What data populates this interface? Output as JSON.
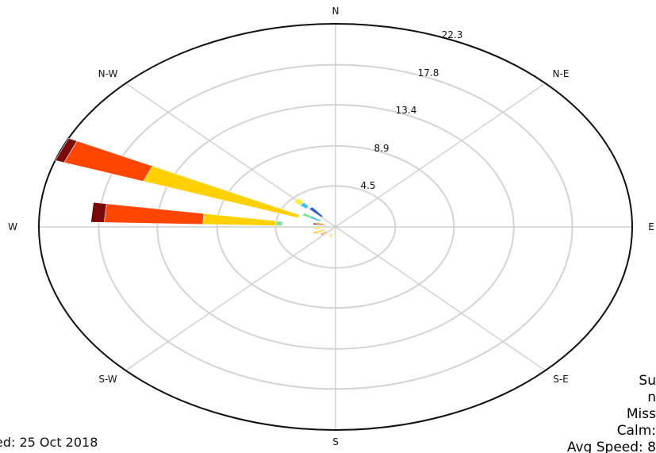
{
  "chart_data": {
    "type": "windrose",
    "directions": [
      "N",
      "N-E",
      "E",
      "S-E",
      "S",
      "S-W",
      "W",
      "N-W"
    ],
    "radial_ticks": [
      "4.5",
      "8.9",
      "13.4",
      "17.8",
      "22.3"
    ],
    "radial_max": 22.3,
    "grid": true,
    "speed_bin_colors": [
      "#ffffff",
      "#bde7f0",
      "#44c0ee",
      "#2a5bd6",
      "#7fe39a",
      "#f8f233",
      "#ffd100",
      "#ff8c10",
      "#ff4500",
      "#7a0a0a"
    ],
    "petals": [
      {
        "bearing": 292.5,
        "stacks": [
          [
            0,
            3.0
          ],
          [
            6,
            15.3
          ],
          [
            8,
            21.6
          ],
          [
            9,
            22.3
          ]
        ]
      },
      {
        "bearing": 275,
        "stacks": [
          [
            0,
            4.0
          ],
          [
            4,
            4.5
          ],
          [
            6,
            10.0
          ],
          [
            8,
            17.4
          ],
          [
            9,
            18.4
          ]
        ]
      },
      {
        "bearing": 315,
        "stacks": [
          [
            0,
            3.0
          ],
          [
            2,
            3.6
          ],
          [
            5,
            4.2
          ]
        ]
      },
      {
        "bearing": 318,
        "stacks": [
          [
            0,
            1.5
          ],
          [
            3,
            2.8
          ]
        ]
      },
      {
        "bearing": 300,
        "stacks": [
          [
            0,
            1.3
          ],
          [
            2,
            2.2
          ],
          [
            4,
            2.8
          ]
        ]
      },
      {
        "bearing": 282,
        "stacks": [
          [
            0,
            0.8
          ],
          [
            9,
            1.7
          ]
        ]
      },
      {
        "bearing": 286,
        "stacks": [
          [
            0,
            0.8
          ],
          [
            7,
            1.5
          ]
        ]
      },
      {
        "bearing": 265,
        "stacks": [
          [
            0,
            1.0
          ],
          [
            6,
            1.6
          ]
        ]
      },
      {
        "bearing": 248,
        "stacks": [
          [
            0,
            0.9
          ],
          [
            6,
            1.8
          ]
        ]
      },
      {
        "bearing": 232,
        "stacks": [
          [
            0,
            0.8
          ],
          [
            7,
            1.4
          ]
        ]
      },
      {
        "bearing": 200,
        "stacks": [
          [
            0,
            0.8
          ],
          [
            6,
            1.2
          ]
        ]
      }
    ]
  },
  "created_text": "ed: 25 Oct 2018",
  "summary": {
    "line1": "Su",
    "line2": "n",
    "line3": "Miss",
    "line4": "Calm:",
    "line5": "Avg Speed: 8"
  }
}
